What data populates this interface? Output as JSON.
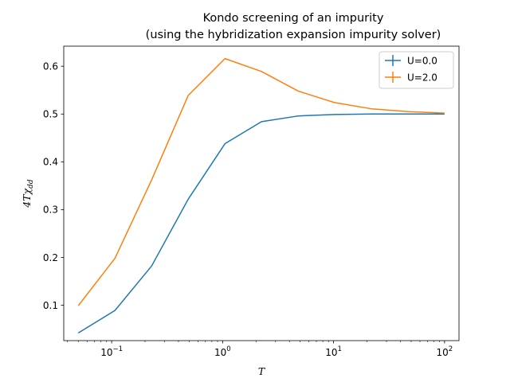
{
  "chart_data": {
    "type": "line",
    "title_line1": "Kondo screening of an impurity",
    "title_line2": "(using the hybridization expansion impurity solver)",
    "xlabel": "T",
    "ylabel_main": "4T",
    "ylabel_chi": "χ",
    "ylabel_sub": "dd",
    "xscale": "log",
    "xlim": [
      0.037,
      135
    ],
    "ylim": [
      0.026,
      0.642
    ],
    "xticks": [
      {
        "value": 0.1,
        "base": "10",
        "exp": "−1"
      },
      {
        "value": 1,
        "base": "10",
        "exp": "0"
      },
      {
        "value": 10,
        "base": "10",
        "exp": "1"
      },
      {
        "value": 100,
        "base": "10",
        "exp": "2"
      }
    ],
    "yticks": [
      "0.1",
      "0.2",
      "0.3",
      "0.4",
      "0.5",
      "0.6"
    ],
    "legend_position": "upper right",
    "series": [
      {
        "name": "U=0.0",
        "color": "#1f77b4",
        "x": [
          0.05,
          0.107,
          0.229,
          0.49,
          1.05,
          2.24,
          4.8,
          10.2,
          21.9,
          46.8,
          100
        ],
        "y": [
          0.042,
          0.089,
          0.182,
          0.322,
          0.438,
          0.484,
          0.496,
          0.499,
          0.5,
          0.5,
          0.5
        ]
      },
      {
        "name": "U=2.0",
        "color": "#ff7f0e",
        "x": [
          0.05,
          0.107,
          0.229,
          0.49,
          1.05,
          2.24,
          4.8,
          10.2,
          21.9,
          46.8,
          100
        ],
        "y": [
          0.099,
          0.198,
          0.362,
          0.539,
          0.616,
          0.589,
          0.548,
          0.524,
          0.511,
          0.505,
          0.502
        ]
      }
    ]
  }
}
